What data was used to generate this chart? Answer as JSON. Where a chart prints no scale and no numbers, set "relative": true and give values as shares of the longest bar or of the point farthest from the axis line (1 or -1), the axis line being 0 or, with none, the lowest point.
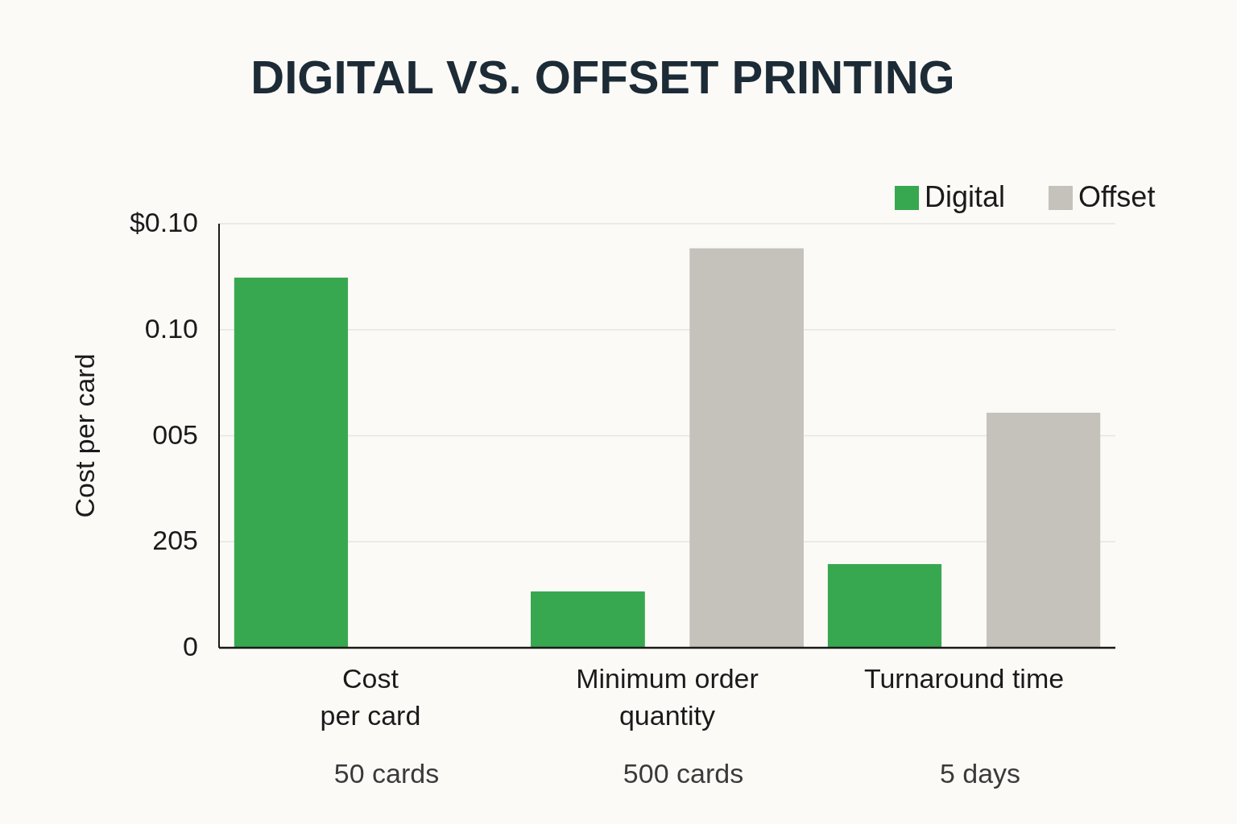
{
  "chart_data": {
    "type": "bar",
    "title": "DIGITAL VS. OFFSET PRINTING",
    "ylabel": "Cost per card",
    "relative": true,
    "categories": [
      "Cost\nper card",
      "Minimum order\nquantity",
      "Turnaround time"
    ],
    "series": [
      {
        "name": "Digital",
        "color": "#37a84f",
        "values": [
          0.926,
          0.141,
          0.21
        ]
      },
      {
        "name": "Offset",
        "color": "#c5c2bc",
        "values": [
          null,
          1,
          0.589
        ]
      }
    ],
    "annotations": [
      "50 cards",
      "500 cards",
      "5 days",
      "$0.10",
      "0.10",
      "005",
      "205",
      "0"
    ],
    "grid": "y",
    "legend": "top right"
  }
}
